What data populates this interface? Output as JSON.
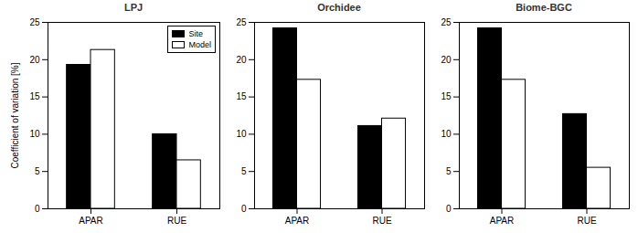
{
  "chart_data": [
    {
      "type": "bar",
      "title": "LPJ",
      "y_label": "Coefficient of variation [%]",
      "categories": [
        "APAR",
        "RUE"
      ],
      "series": [
        {
          "name": "Site",
          "color": "#000000",
          "values": [
            19.3,
            10.0
          ]
        },
        {
          "name": "Model",
          "color": "#ffffff",
          "values": [
            21.3,
            6.5
          ]
        }
      ],
      "ylim": [
        0,
        25
      ],
      "yticks": [
        0,
        5,
        10,
        15,
        20,
        25
      ],
      "legend": "top-right"
    },
    {
      "type": "bar",
      "title": "Orchidee",
      "categories": [
        "APAR",
        "RUE"
      ],
      "series": [
        {
          "name": "Site",
          "color": "#000000",
          "values": [
            24.2,
            11.1
          ]
        },
        {
          "name": "Model",
          "color": "#ffffff",
          "values": [
            17.3,
            12.1
          ]
        }
      ],
      "ylim": [
        0,
        25
      ],
      "yticks": [
        0,
        5,
        10,
        15,
        20,
        25
      ]
    },
    {
      "type": "bar",
      "title": "Biome-BGC",
      "categories": [
        "APAR",
        "RUE"
      ],
      "series": [
        {
          "name": "Site",
          "color": "#000000",
          "values": [
            24.2,
            12.7
          ]
        },
        {
          "name": "Model",
          "color": "#ffffff",
          "values": [
            17.3,
            5.5
          ]
        }
      ],
      "ylim": [
        0,
        25
      ],
      "yticks": [
        0,
        5,
        10,
        15,
        20,
        25
      ]
    }
  ]
}
